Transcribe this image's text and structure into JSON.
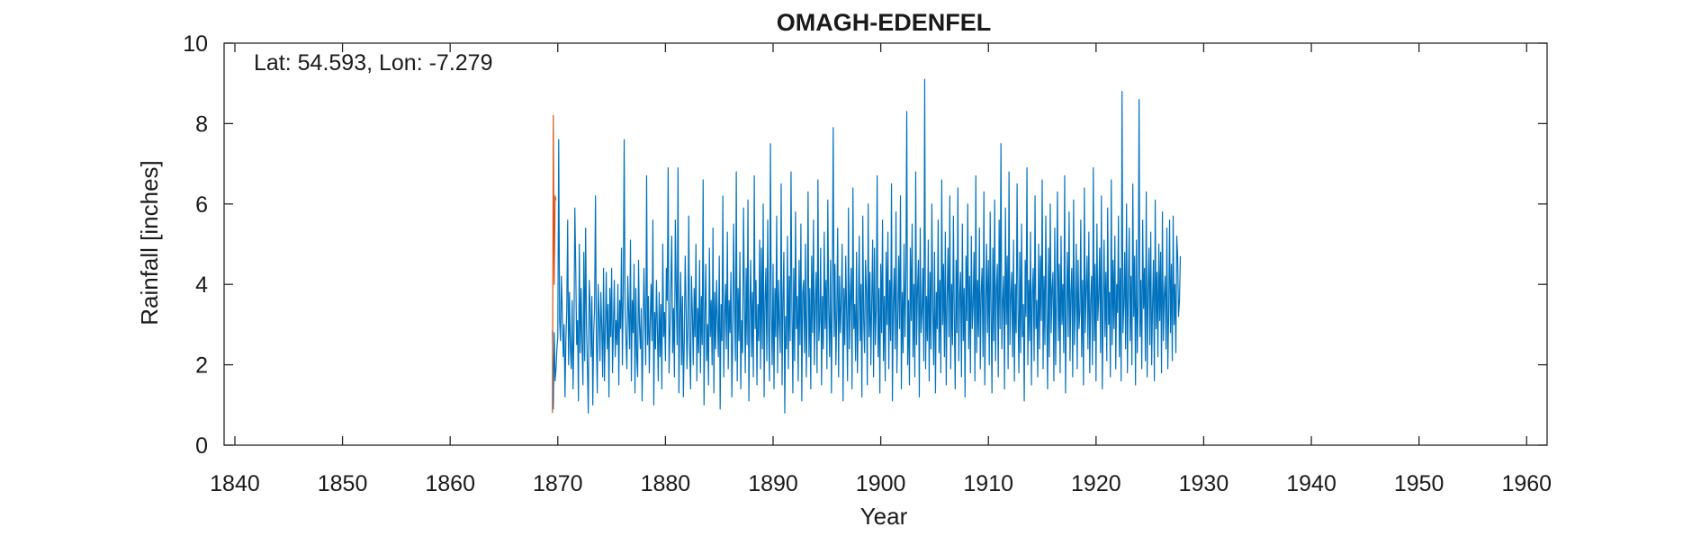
{
  "chart_data": {
    "type": "line",
    "title": "OMAGH-EDENFEL",
    "xlabel": "Year",
    "ylabel": "Rainfall [inches]",
    "annotation": "Lat: 54.593, Lon: -7.279",
    "xlim": [
      1839,
      1961.9
    ],
    "ylim": [
      0,
      10
    ],
    "xticks": [
      1840,
      1850,
      1860,
      1870,
      1880,
      1890,
      1900,
      1910,
      1920,
      1930,
      1940,
      1950,
      1960
    ],
    "yticks": [
      0,
      2,
      4,
      6,
      8,
      10
    ],
    "grid": false,
    "series": [
      {
        "color": "#0072bd",
        "x_start": 1869.5,
        "x_step": 0.08333,
        "values": [
          2.85,
          0.9,
          2.8,
          1.6,
          1.9,
          2.4,
          2.7,
          7.6,
          3.1,
          2.6,
          4.2,
          3.3,
          2.2,
          3.0,
          1.2,
          2.6,
          3.4,
          5.6,
          2.0,
          3.8,
          2.4,
          1.9,
          3.6,
          1.4,
          2.8,
          5.9,
          4.4,
          2.5,
          3.1,
          1.1,
          5.0,
          2.3,
          3.9,
          2.5,
          1.5,
          4.8,
          2.1,
          5.4,
          3.0,
          1.9,
          0.8,
          4.1,
          3.5,
          2.2,
          3.7,
          1.0,
          2.8,
          3.4,
          6.2,
          2.6,
          1.3,
          4.0,
          3.2,
          2.1,
          3.8,
          2.9,
          1.7,
          4.4,
          1.6,
          2.9,
          4.3,
          2.4,
          3.5,
          1.2,
          3.9,
          2.7,
          4.4,
          1.8,
          3.0,
          4.1,
          2.2,
          3.1,
          2.5,
          4.0,
          1.5,
          3.6,
          2.9,
          4.9,
          2.0,
          3.8,
          7.6,
          3.4,
          2.6,
          1.9,
          4.2,
          3.3,
          2.4,
          5.1,
          1.6,
          3.6,
          2.8,
          4.5,
          1.3,
          3.9,
          2.2,
          1.7,
          4.6,
          3.0,
          2.4,
          3.4,
          1.1,
          2.7,
          4.4,
          3.2,
          2.0,
          6.7,
          2.5,
          3.7,
          1.8,
          3.1,
          4.0,
          2.6,
          5.6,
          1.0,
          3.3,
          2.4,
          4.1,
          2.9,
          1.6,
          3.8,
          2.2,
          3.5,
          1.4,
          5.0,
          2.7,
          3.3,
          2.1,
          4.4,
          3.6,
          6.9,
          1.8,
          2.8,
          4.0,
          5.2,
          2.3,
          3.4,
          1.7,
          5.6,
          3.9,
          2.5,
          6.9,
          1.3,
          3.1,
          4.3,
          2.0,
          3.7,
          1.2,
          2.6,
          4.7,
          3.5,
          1.9,
          3.0,
          5.7,
          2.4,
          1.4,
          4.2,
          3.3,
          2.0,
          3.9,
          2.7,
          5.0,
          1.6,
          3.4,
          2.3,
          4.6,
          1.8,
          3.7,
          2.5,
          6.6,
          1.0,
          3.2,
          4.5,
          2.1,
          3.0,
          1.5,
          4.9,
          2.7,
          3.6,
          2.0,
          5.4,
          1.3,
          3.8,
          2.4,
          4.1,
          3.1,
          2.2,
          4.7,
          0.9,
          3.5,
          2.6,
          6.2,
          1.7,
          3.2,
          4.0,
          2.4,
          5.3,
          1.9,
          3.6,
          2.8,
          4.3,
          1.2,
          2.7,
          5.5,
          3.4,
          2.1,
          6.8,
          1.6,
          3.9,
          2.6,
          4.8,
          1.4,
          3.1,
          2.3,
          5.9,
          3.7,
          1.8,
          4.4,
          2.5,
          6.1,
          1.1,
          3.3,
          4.6,
          2.2,
          3.8,
          1.7,
          6.7,
          2.9,
          4.1,
          1.5,
          3.5,
          2.6,
          5.1,
          1.9,
          4.9,
          2.4,
          6.0,
          1.2,
          3.6,
          4.4,
          2.1,
          5.6,
          2.8,
          1.6,
          7.5,
          3.3,
          2.0,
          4.5,
          1.4,
          3.9,
          2.7,
          5.7,
          1.8,
          4.1,
          3.0,
          2.3,
          6.5,
          1.5,
          3.6,
          4.8,
          0.8,
          3.2,
          2.4,
          5.2,
          1.9,
          4.2,
          2.6,
          6.8,
          3.4,
          1.3,
          4.4,
          2.1,
          5.8,
          2.9,
          3.7,
          1.6,
          4.6,
          2.5,
          5.5,
          1.1,
          3.8,
          4.1,
          2.3,
          5.0,
          1.7,
          3.3,
          6.3,
          2.2,
          3.9,
          1.4,
          4.7,
          2.8,
          5.6,
          2.0,
          3.5,
          4.3,
          1.8,
          6.6,
          2.6,
          3.1,
          4.9,
          1.5,
          3.7,
          2.4,
          5.3,
          2.9,
          4.1,
          1.9,
          6.1,
          3.4,
          2.2,
          4.6,
          1.3,
          3.8,
          7.9,
          2.7,
          4.5,
          2.0,
          3.3,
          5.4,
          1.7,
          4.2,
          2.8,
          3.6,
          5.0,
          1.1,
          3.9,
          2.5,
          4.7,
          3.2,
          1.6,
          5.9,
          2.4,
          3.7,
          4.4,
          1.4,
          6.4,
          2.9,
          3.5,
          2.1,
          4.8,
          1.8,
          3.3,
          5.2,
          2.6,
          4.0,
          1.2,
          5.7,
          3.1,
          2.3,
          4.6,
          3.8,
          1.5,
          6.0,
          2.7,
          4.3,
          2.0,
          3.6,
          5.1,
          1.7,
          4.9,
          2.5,
          3.4,
          6.7,
          2.2,
          3.9,
          1.3,
          4.5,
          2.8,
          5.6,
          2.1,
          3.7,
          1.6,
          4.8,
          3.0,
          5.3,
          1.9,
          4.1,
          2.6,
          6.5,
          1.1,
          3.5,
          4.4,
          2.4,
          5.8,
          1.8,
          3.2,
          4.7,
          2.9,
          6.2,
          1.4,
          3.8,
          2.3,
          5.0,
          2.7,
          4.2,
          8.3,
          2.0,
          3.6,
          1.5,
          4.9,
          3.1,
          5.5,
          2.2,
          4.0,
          1.7,
          6.8,
          2.5,
          3.9,
          4.6,
          1.2,
          5.4,
          2.8,
          3.3,
          4.4,
          2.1,
          9.1,
          1.9,
          3.7,
          2.6,
          5.1,
          1.6,
          4.3,
          2.4,
          6.0,
          3.4,
          2.0,
          4.8,
          1.3,
          3.8,
          2.9,
          5.6,
          2.3,
          4.1,
          1.8,
          6.6,
          3.0,
          4.5,
          2.2,
          5.3,
          1.5,
          3.6,
          4.9,
          2.7,
          6.2,
          1.9,
          4.0,
          2.5,
          5.7,
          3.2,
          1.4,
          4.6,
          2.8,
          6.4,
          2.1,
          3.7,
          4.3,
          1.7,
          5.5,
          2.6,
          3.9,
          1.2,
          4.7,
          3.1,
          6.0,
          2.4,
          4.2,
          1.8,
          5.2,
          2.9,
          3.5,
          4.8,
          1.6,
          6.7,
          2.3,
          4.1,
          2.7,
          5.4,
          1.9,
          3.8,
          4.4,
          2.2,
          6.3,
          1.5,
          3.4,
          5.0,
          2.8,
          4.6,
          2.0,
          5.8,
          3.3,
          1.3,
          4.9,
          2.6,
          6.1,
          2.1,
          3.9,
          4.5,
          1.7,
          5.6,
          2.9,
          7.5,
          2.4,
          3.6,
          4.2,
          1.4,
          5.9,
          3.0,
          4.7,
          1.9,
          6.8,
          2.5,
          3.7,
          4.3,
          2.2,
          5.1,
          1.6,
          4.0,
          2.8,
          6.5,
          3.4,
          1.8,
          4.8,
          2.3,
          5.5,
          2.7,
          3.5,
          1.1,
          4.6,
          3.2,
          6.9,
          2.0,
          4.1,
          2.6,
          5.3,
          1.5,
          3.8,
          4.4,
          2.1,
          6.2,
          2.9,
          3.6,
          1.7,
          5.0,
          2.4,
          4.7,
          3.1,
          6.6,
          1.9,
          4.2,
          2.5,
          5.7,
          3.3,
          1.4,
          4.9,
          2.2,
          6.0,
          2.8,
          3.9,
          4.3,
          1.6,
          5.4,
          2.0,
          3.7,
          6.3,
          2.6,
          4.5,
          1.8,
          5.2,
          3.0,
          4.0,
          2.3,
          6.7,
          1.3,
          3.4,
          4.8,
          2.7,
          5.8,
          2.1,
          3.8,
          4.4,
          1.7,
          6.1,
          2.5,
          3.5,
          5.0,
          1.9,
          4.6,
          2.9,
          3.3,
          5.6,
          2.2,
          4.1,
          1.5,
          6.4,
          2.8,
          3.9,
          4.7,
          2.4,
          5.3,
          1.8,
          3.6,
          4.2,
          2.0,
          6.9,
          2.6,
          4.5,
          1.6,
          5.5,
          3.1,
          3.7,
          4.9,
          2.3,
          6.2,
          1.4,
          3.4,
          5.1,
          2.7,
          4.3,
          2.1,
          5.9,
          3.0,
          3.8,
          1.7,
          6.6,
          2.5,
          4.6,
          2.9,
          5.2,
          1.9,
          4.0,
          3.3,
          5.7,
          2.2,
          4.4,
          1.6,
          8.8,
          2.8,
          3.5,
          4.8,
          2.4,
          6.0,
          1.8,
          3.9,
          5.4,
          2.6,
          4.2,
          2.0,
          6.5,
          3.2,
          4.7,
          1.5,
          5.1,
          2.3,
          3.6,
          8.6,
          2.7,
          4.1,
          1.9,
          5.6,
          3.4,
          4.4,
          2.1,
          6.3,
          1.7,
          3.8,
          4.9,
          2.5,
          5.3,
          2.0,
          3.5,
          4.6,
          1.6,
          6.1,
          2.9,
          4.3,
          2.2,
          5.0,
          3.1,
          4.8,
          1.8,
          5.8,
          2.6,
          3.7,
          4.2,
          2.4,
          5.4,
          1.9,
          3.3,
          5.6,
          2.8,
          4.5,
          2.1,
          5.7,
          3.0,
          4.0,
          2.3,
          5.2,
          4.7,
          3.2,
          3.6,
          4.7
        ]
      },
      {
        "color": "#d95319",
        "x_start": 1869.5,
        "x_step": 0.08333,
        "values": [
          0.8,
          8.2,
          4.0,
          6.2,
          6.1
        ]
      }
    ]
  }
}
